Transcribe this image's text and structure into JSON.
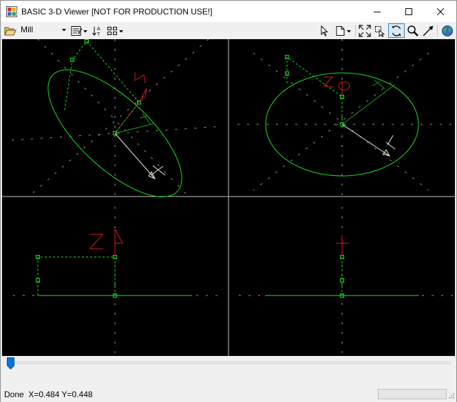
{
  "window": {
    "title": "BASIC 3-D Viewer [NOT FOR PRODUCTION USE!]"
  },
  "toolbar": {
    "machine_type": "Mill",
    "active_tool": "rotate"
  },
  "viewports": {
    "count": 4,
    "background": "#000000",
    "toolpath_color": "#19e619",
    "axis_color": "#dd1a1a",
    "tool_color": "#f0f0e0"
  },
  "playback": {
    "position": 0.0
  },
  "status": {
    "message": "Done",
    "coords": "X=0.484 Y=0.448",
    "progress": 0.0
  },
  "colors": {
    "title_bg": "#ffffff",
    "chrome_bg": "#f0f0f0",
    "accent": "#0078d7"
  }
}
